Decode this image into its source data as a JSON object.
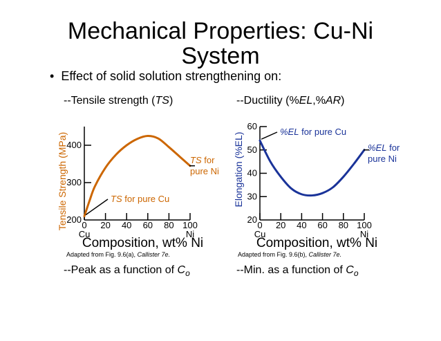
{
  "slide": {
    "title_line1": "Mechanical Properties: Cu-Ni",
    "title_line2": "System",
    "bullet": "Effect of solid solution strengthening on:",
    "left_sub_prefix": "--Tensile strength (",
    "left_sub_italic": "TS",
    "left_sub_suffix": ")",
    "right_sub_prefix": "--Ductility (%",
    "right_sub_italic1": "EL",
    "right_sub_mid": ",%",
    "right_sub_italic2": "AR",
    "right_sub_suffix": ")",
    "left_caption_prefix": "Adapted from Fig. 9.6(a), ",
    "left_caption_italic": "Callister 7e.",
    "right_caption_prefix": "Adapted from Fig. 9.6(b), ",
    "right_caption_italic": "Callister 7e.",
    "left_note_prefix": "--Peak as a function of ",
    "left_note_italic": "C",
    "left_note_sub": "o",
    "right_note_prefix": "--Min. as a function of ",
    "right_note_italic": "C",
    "right_note_sub": "o"
  },
  "chart_data": [
    {
      "type": "line",
      "title": "Tensile strength (TS)",
      "xlabel": "Composition, wt% Ni",
      "ylabel": "Tensile Strength (MPa)",
      "xlim": [
        0,
        100
      ],
      "ylim": [
        200,
        450
      ],
      "xticks": [
        "0",
        "20",
        "40",
        "60",
        "80",
        "100"
      ],
      "yticks": [
        "200",
        "300",
        "400"
      ],
      "x_end_labels": [
        "Cu",
        "Ni"
      ],
      "color": "#cc6600",
      "series": [
        {
          "name": "TS",
          "x": [
            0,
            5,
            10,
            20,
            30,
            40,
            50,
            60,
            70,
            80,
            90,
            100
          ],
          "y": [
            210,
            252,
            290,
            340,
            375,
            400,
            417,
            425,
            418,
            395,
            370,
            345
          ]
        }
      ],
      "annotations": [
        {
          "text_italic": "TS",
          "text": " for pure Cu",
          "x": 0,
          "y": 210
        },
        {
          "text_italic": "TS",
          "text": " for",
          "text2": "pure Ni",
          "x": 100,
          "y": 345
        }
      ]
    },
    {
      "type": "line",
      "title": "Ductility (%EL,%AR)",
      "xlabel": "Composition, wt% Ni",
      "ylabel": "Elongation (%EL)",
      "xlim": [
        0,
        100
      ],
      "ylim": [
        20,
        60
      ],
      "xticks": [
        "0",
        "20",
        "40",
        "60",
        "80",
        "100"
      ],
      "yticks": [
        "20",
        "30",
        "40",
        "50",
        "60"
      ],
      "x_end_labels": [
        "Cu",
        "Ni"
      ],
      "color": "#1a3399",
      "series": [
        {
          "name": "%EL",
          "x": [
            0,
            10,
            20,
            30,
            40,
            50,
            60,
            70,
            80,
            90,
            100
          ],
          "y": [
            54,
            45,
            38.5,
            33.5,
            31,
            30.5,
            31.5,
            34,
            38.5,
            44,
            50
          ]
        }
      ],
      "annotations": [
        {
          "text_italic": "%EL",
          "text": " for pure Cu",
          "x": 0,
          "y": 54
        },
        {
          "text_italic": "%EL",
          "text": " for",
          "text2": "pure Ni",
          "x": 100,
          "y": 50
        }
      ]
    }
  ]
}
